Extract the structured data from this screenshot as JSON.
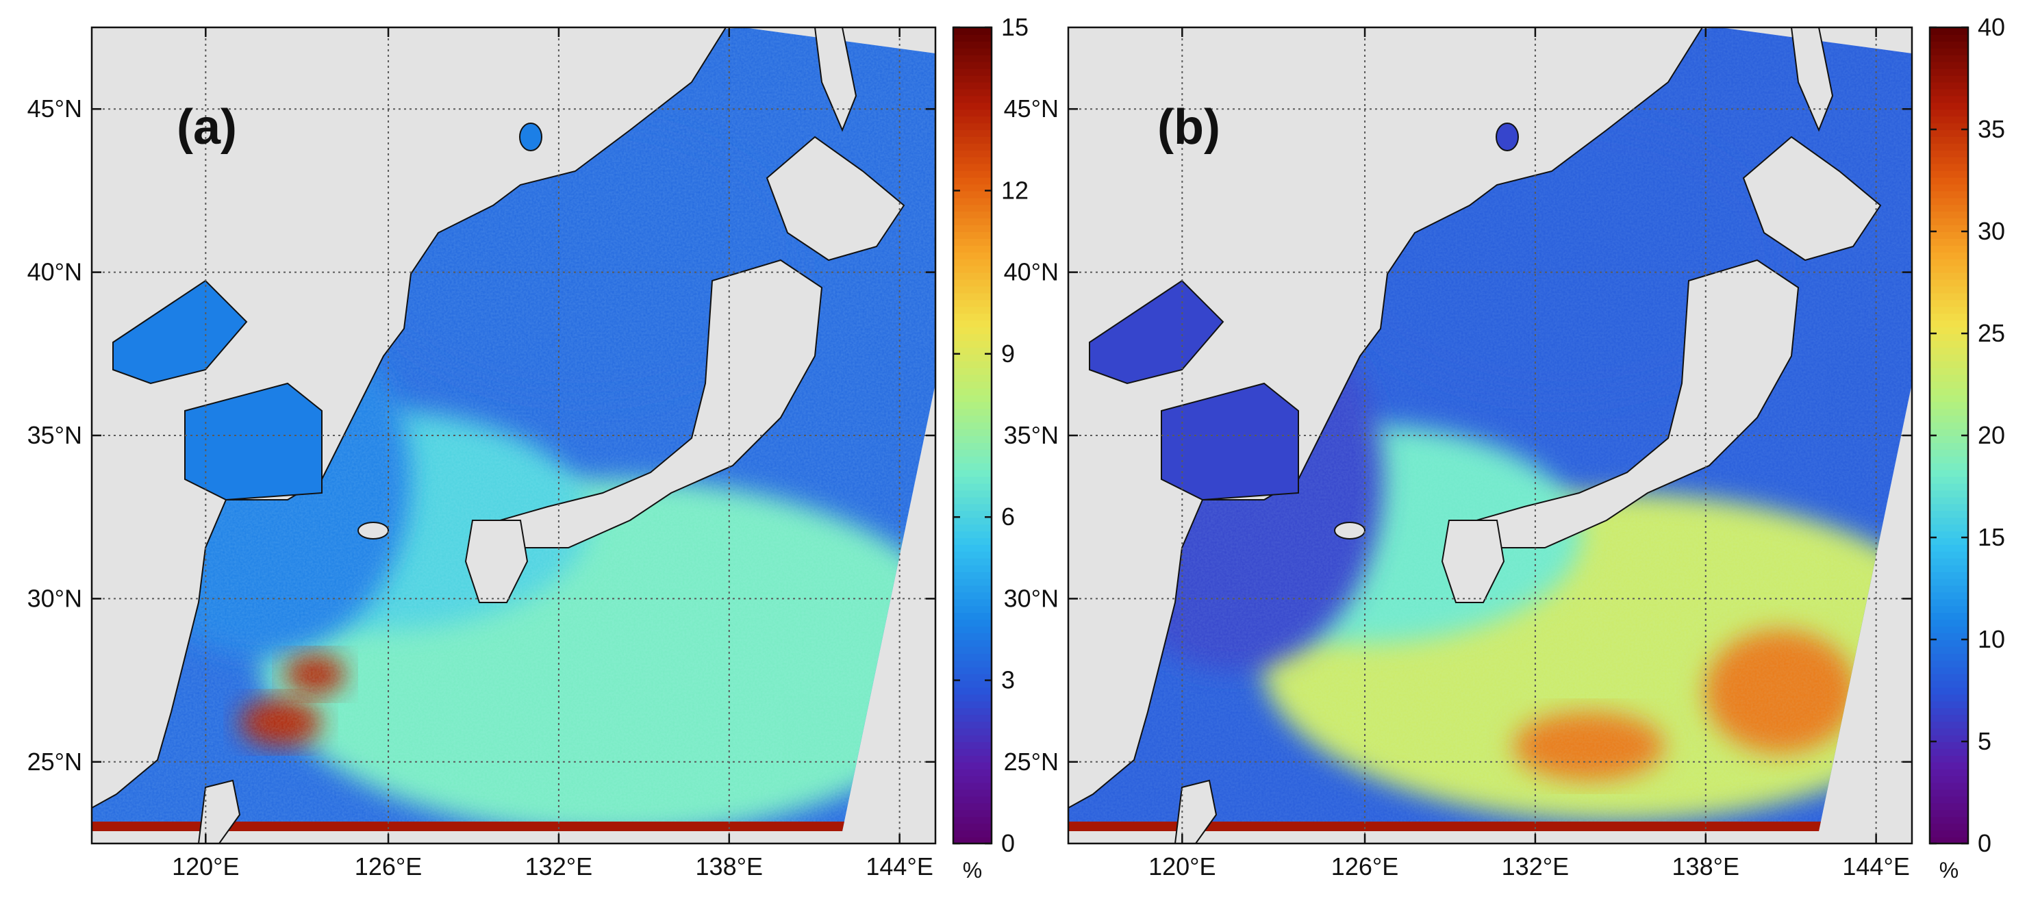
{
  "colors": {
    "land": "#e3e3e3",
    "coast": "#111111",
    "grid": "#5a5a5a",
    "colormap": [
      "#5b006b",
      "#5a1aa8",
      "#2a52d8",
      "#1a86e8",
      "#33c2f0",
      "#74ecc8",
      "#b6f07a",
      "#f2e24a",
      "#f7a526",
      "#e25a0c",
      "#b11a05",
      "#600000"
    ]
  },
  "map": {
    "lon_labels": [
      "120°E",
      "126°E",
      "132°E",
      "138°E",
      "144°E"
    ],
    "lat_labels": [
      "25°N",
      "30°N",
      "35°N",
      "40°N",
      "45°N"
    ]
  },
  "panels": [
    {
      "label": "(a)",
      "colorbar": {
        "ticks": [
          "0",
          "3",
          "6",
          "9",
          "12",
          "15"
        ],
        "unit": "%",
        "range": [
          0,
          15
        ]
      },
      "field_levels": {
        "background": 0.22,
        "japan_sea": 0.22,
        "east_china_sea": 0.26,
        "pacific_south": 0.46,
        "kuroshio": 0.4,
        "hotspots": 0.9
      }
    },
    {
      "label": "(b)",
      "colorbar": {
        "ticks": [
          "0",
          "5",
          "10",
          "15",
          "20",
          "25",
          "30",
          "35",
          "40"
        ],
        "unit": "%",
        "range": [
          0,
          40
        ]
      },
      "field_levels": {
        "background": 0.2,
        "japan_sea": 0.2,
        "east_china_sea": 0.16,
        "pacific_south": 0.58,
        "kuroshio": 0.45,
        "hotspots": 0.78
      }
    }
  ]
}
